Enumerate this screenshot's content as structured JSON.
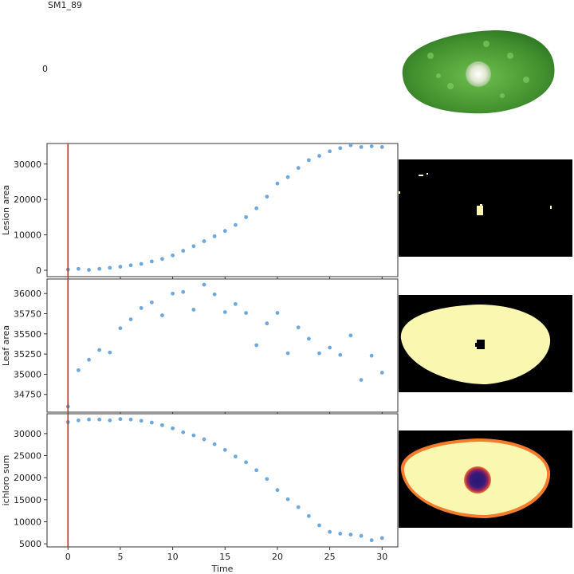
{
  "header": {
    "title": "SM1_89",
    "frame_index": "0"
  },
  "colors": {
    "points": "#6fa8dc",
    "cursor": "#dd2222",
    "leaf_green": "#4a9a3a",
    "lesion_yellow": "#f9f7b0"
  },
  "images": {
    "leaf_photo": "leaf-photo-icon",
    "lesion_mask": "lesion-mask-icon",
    "leaf_mask": "leaf-mask-icon",
    "chloro_map": "chlorophyll-map-icon"
  },
  "chart_data": [
    {
      "type": "scatter",
      "ylabel": "Lesion area",
      "xlim": [
        -2,
        31.5
      ],
      "ylim": [
        -1800,
        35800
      ],
      "yticks": [
        0,
        10000,
        20000,
        30000
      ],
      "x": [
        0,
        1,
        2,
        3,
        4,
        5,
        6,
        7,
        8,
        9,
        10,
        11,
        12,
        13,
        14,
        15,
        16,
        17,
        18,
        19,
        20,
        21,
        22,
        23,
        24,
        25,
        26,
        27,
        28,
        29,
        30
      ],
      "y": [
        200,
        400,
        100,
        400,
        700,
        1000,
        1400,
        1800,
        2500,
        3200,
        4200,
        5500,
        6800,
        8200,
        9600,
        11100,
        12800,
        15000,
        17500,
        20800,
        24500,
        26300,
        28900,
        31100,
        32300,
        33600,
        34500,
        35300,
        34800,
        35000,
        34800
      ],
      "cursor_x": 0
    },
    {
      "type": "scatter",
      "ylabel": "Leaf area",
      "xlim": [
        -2,
        31.5
      ],
      "ylim": [
        34530,
        36180
      ],
      "yticks": [
        34750,
        35000,
        35250,
        35500,
        35750,
        36000
      ],
      "x": [
        0,
        1,
        2,
        3,
        4,
        5,
        6,
        7,
        8,
        9,
        10,
        11,
        12,
        13,
        14,
        15,
        16,
        17,
        18,
        19,
        20,
        21,
        22,
        23,
        24,
        25,
        26,
        27,
        28,
        29,
        30
      ],
      "y": [
        34600,
        35050,
        35180,
        35300,
        35270,
        35570,
        35680,
        35820,
        35890,
        35730,
        36000,
        36020,
        35800,
        36110,
        35990,
        35770,
        35870,
        35760,
        35360,
        35630,
        35760,
        35260,
        35580,
        35440,
        35260,
        35330,
        35240,
        35480,
        34930,
        35230,
        35020
      ],
      "cursor_x": 0
    },
    {
      "type": "scatter",
      "ylabel": "ichloro sum",
      "xlabel": "Time",
      "xlim": [
        -2,
        31.5
      ],
      "ylim": [
        4300,
        34500
      ],
      "xticks": [
        0,
        5,
        10,
        15,
        20,
        25,
        30
      ],
      "yticks": [
        5000,
        10000,
        15000,
        20000,
        25000,
        30000
      ],
      "x": [
        0,
        1,
        2,
        3,
        4,
        5,
        6,
        7,
        8,
        9,
        10,
        11,
        12,
        13,
        14,
        15,
        16,
        17,
        18,
        19,
        20,
        21,
        22,
        23,
        24,
        25,
        26,
        27,
        28,
        29,
        30
      ],
      "y": [
        32600,
        33000,
        33200,
        33200,
        33000,
        33300,
        33200,
        32900,
        32500,
        31900,
        31200,
        30300,
        29600,
        28700,
        27600,
        26300,
        24800,
        23500,
        21700,
        19700,
        17200,
        15100,
        13300,
        11300,
        9200,
        7700,
        7300,
        7100,
        6800,
        5800,
        6300
      ],
      "cursor_x": 0
    }
  ]
}
